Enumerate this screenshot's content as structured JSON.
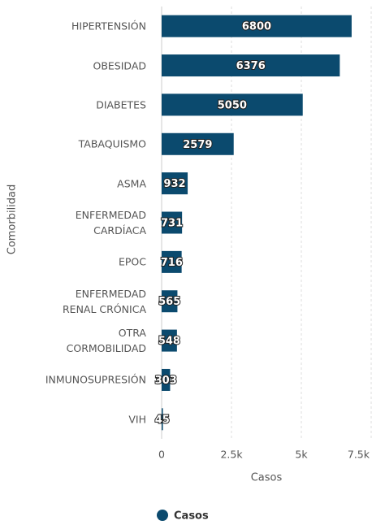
{
  "chart_data": {
    "type": "bar",
    "orientation": "horizontal",
    "y_label": "Comorbilidad",
    "x_label": "Casos",
    "categories": [
      "HIPERTENSIÓN",
      "OBESIDAD",
      "DIABETES",
      "TABAQUISMO",
      "ASMA",
      "ENFERMEDAD\nCARDÍACA",
      "EPOC",
      "ENFERMEDAD\nRENAL CRÓNICA",
      "OTRA\nCORMOBILIDAD",
      "INMUNOSUPRESIÓN",
      "VIH"
    ],
    "series": [
      {
        "name": "Casos",
        "color": "#0b4a6e",
        "values": [
          6800,
          6376,
          5050,
          2579,
          932,
          731,
          716,
          565,
          548,
          303,
          45
        ]
      }
    ],
    "xlim": [
      0,
      7500
    ],
    "xticks": [
      0,
      {
        "value": 2500,
        "label": "2.5k"
      },
      {
        "value": 5000,
        "label": "5k"
      },
      {
        "value": 7500,
        "label": "7.5k"
      }
    ],
    "grid": true,
    "legend": "bottom"
  }
}
